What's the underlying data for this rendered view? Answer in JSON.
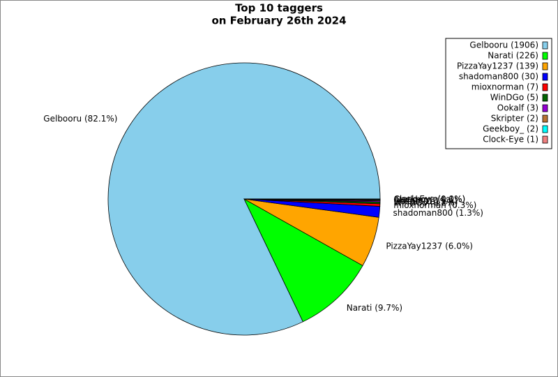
{
  "chart_data": {
    "type": "pie",
    "title": [
      "Top 10 taggers",
      "on February 26th 2024"
    ],
    "categories": [
      "Gelbooru",
      "Narati",
      "PizzaYay1237",
      "shadoman800",
      "mioxnorman",
      "WinDGo",
      "Ookalf",
      "Skripter",
      "Geekboy_",
      "Clock-Eye"
    ],
    "values": [
      1906,
      226,
      139,
      30,
      7,
      5,
      3,
      2,
      2,
      1
    ],
    "value_labels": [
      "Gelbooru (1906)",
      "Narati (226)",
      "PizzaYay1237 (139)",
      "shadoman800 (30)",
      "mioxnorman (7)",
      "WinDGo (5)",
      "Ookalf (3)",
      "Skripter (2)",
      "Geekboy_ (2)",
      "Clock-Eye (1)"
    ],
    "percent_labels": [
      "Gelbooru (82.1%)",
      "Narati (9.7%)",
      "PizzaYay1237 (6.0%)",
      "shadoman800 (1.3%)",
      "mioxnorman (0.3%)",
      "WinDGo (0.2%)",
      "Ookalf (0.1%)",
      "Skripter (0.1%)",
      "Geekboy_ (0.1%)",
      "Clock-Eye (0.0%)"
    ],
    "colors": [
      "#87ceeb",
      "#00ff00",
      "#ffa500",
      "#0000ff",
      "#ff0000",
      "#006400",
      "#9400d3",
      "#b87333",
      "#00ffff",
      "#f08080"
    ],
    "legend": "upper right"
  }
}
